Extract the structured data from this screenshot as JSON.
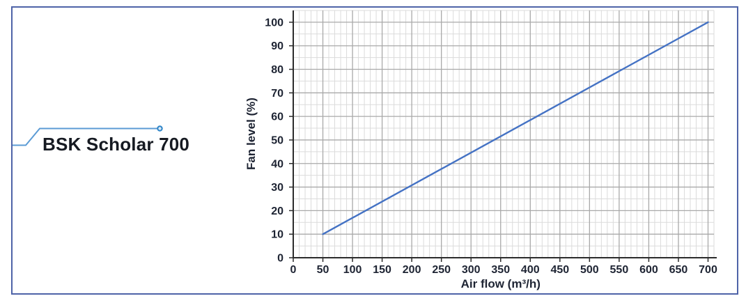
{
  "figure": {
    "label": "BSK Scholar 700",
    "border_color": "#4e63a8",
    "callout_color": "#5b9bd5",
    "callout_dot_fill": "#deebf7",
    "callout_dot_stroke": "#2e85c8"
  },
  "chart_data": {
    "type": "line",
    "title": "",
    "xlabel": "Air flow (m³/h)",
    "ylabel": "Fan level (%)",
    "x_ticks": [
      0,
      50,
      100,
      150,
      200,
      250,
      300,
      350,
      400,
      450,
      500,
      550,
      600,
      650,
      700
    ],
    "y_ticks": [
      0,
      10,
      20,
      30,
      40,
      50,
      60,
      70,
      80,
      90,
      100
    ],
    "xlim": [
      0,
      710
    ],
    "ylim": [
      0,
      105
    ],
    "x_minor_step": 10,
    "y_minor_step": 5,
    "x_major_step": 50,
    "y_major_step": 10,
    "grid": "major+minor",
    "legend": "none",
    "colors": {
      "line": "#4472c4",
      "grid_minor": "#dbdbdb",
      "grid_major": "#a9a9a9",
      "axis": "#2b2b2b",
      "tick_label": "#1e2433"
    },
    "series": [
      {
        "name": "Fan level",
        "points": [
          [
            50,
            10
          ],
          [
            700,
            100
          ]
        ]
      }
    ]
  }
}
